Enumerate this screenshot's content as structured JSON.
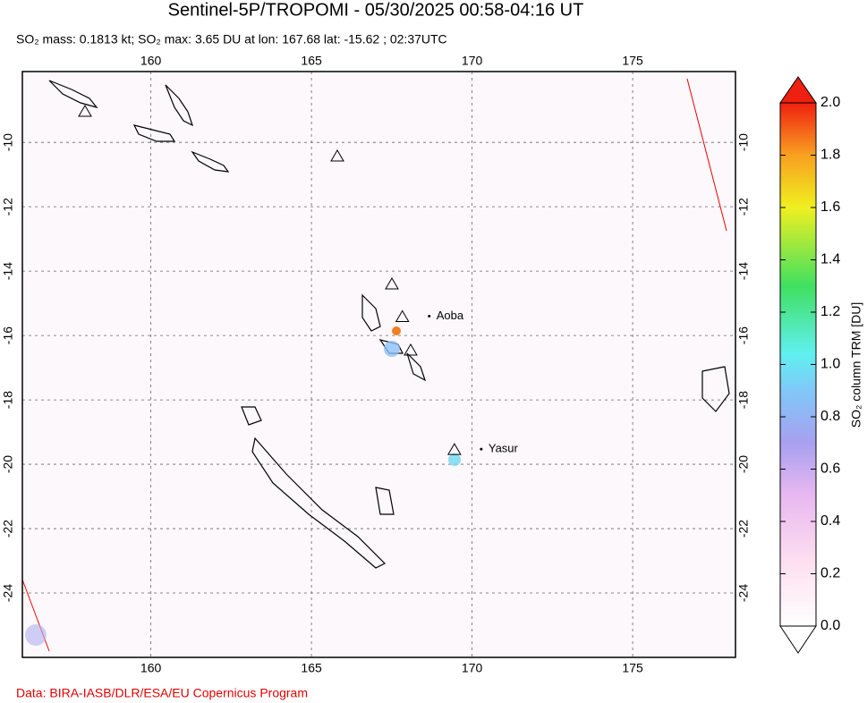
{
  "map": {
    "title": "Sentinel-5P/TROPOMI - 05/30/2025 00:58-04:16 UT",
    "subtitle": "SO₂ mass: 0.1813 kt; SO₂ max: 3.65 DU at lon: 167.68 lat: -15.62 ; 02:37UTC",
    "credit": "Data: BIRA-IASB/DLR/ESA/EU Copernicus Program",
    "xlim": [
      156,
      178.2
    ],
    "ylim": [
      -26,
      -7.8
    ],
    "xticks": [
      160,
      165,
      170,
      175
    ],
    "yticks": [
      -10,
      -12,
      -14,
      -16,
      -18,
      -20,
      -22,
      -24
    ],
    "grid": true,
    "volcanoes": [
      {
        "label": "Aoba",
        "lon": 167.83,
        "lat": -15.4
      },
      {
        "label": "Yasur",
        "lon": 169.45,
        "lat": -19.53
      }
    ],
    "colorbar": {
      "label": "SO₂ column TRM [DU]",
      "lim": [
        0,
        2
      ],
      "ticks": [
        {
          "value": 0,
          "label": "0.0"
        },
        {
          "value": 0.2,
          "label": "0.2"
        },
        {
          "value": 0.4,
          "label": "0.4"
        },
        {
          "value": 0.6,
          "label": "0.6"
        },
        {
          "value": 0.8,
          "label": "0.8"
        },
        {
          "value": 1,
          "label": "1.0"
        },
        {
          "value": 1.2,
          "label": "1.2"
        },
        {
          "value": 1.4,
          "label": "1.4"
        },
        {
          "value": 1.6,
          "label": "1.6"
        },
        {
          "value": 1.8,
          "label": "1.8"
        },
        {
          "value": 2,
          "label": "2.0"
        }
      ]
    }
  }
}
